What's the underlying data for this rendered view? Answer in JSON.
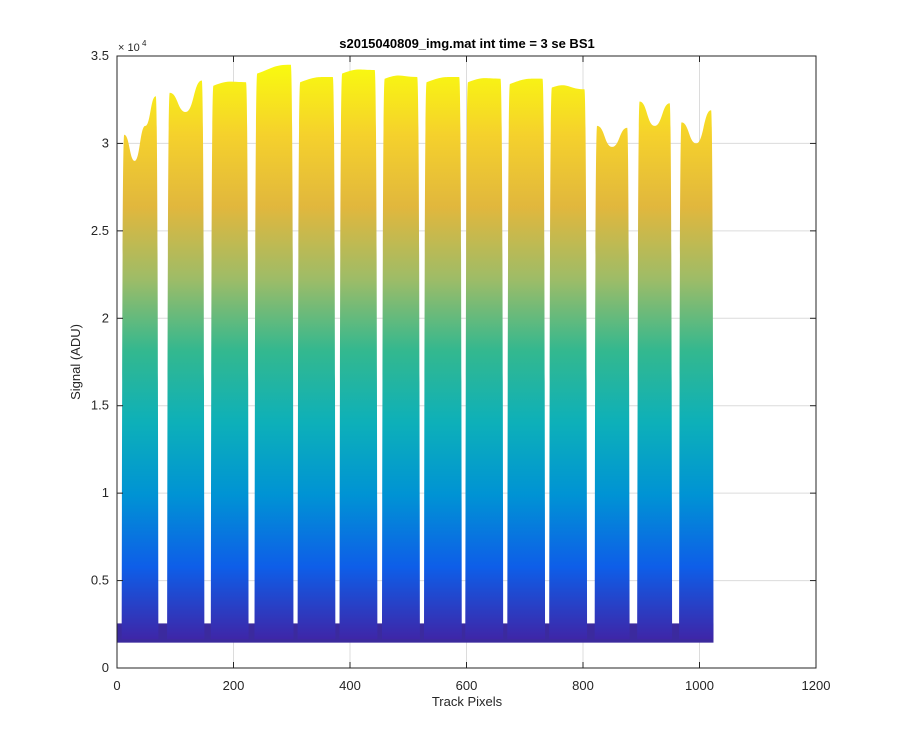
{
  "chart_data": {
    "type": "area",
    "title": "s2015040809_img.mat int time = 3 se   BS1",
    "xlabel": "Track Pixels",
    "ylabel": "Signal (ADU)",
    "xlim": [
      0,
      1200
    ],
    "ylim": [
      0,
      35000
    ],
    "x_ticks": [
      0,
      200,
      400,
      600,
      800,
      1000,
      1200
    ],
    "y_ticks": [
      0,
      5000,
      10000,
      15000,
      20000,
      25000,
      30000,
      35000
    ],
    "y_tick_labels": [
      "0",
      "0.5",
      "1",
      "1.5",
      "2",
      "2.5",
      "3",
      "3.5"
    ],
    "y_exponent": {
      "base": "× 10",
      "power": "4"
    },
    "grid": true,
    "baseline": 1650,
    "x_data_end": 1024,
    "peaks": [
      {
        "x_start": 8,
        "x_end": 71,
        "values": [
          30500,
          29000,
          31000,
          32700
        ]
      },
      {
        "x_start": 86,
        "x_end": 150,
        "values": [
          32900,
          31800,
          33600
        ]
      },
      {
        "x_start": 161,
        "x_end": 226,
        "values": [
          33300,
          33500
        ]
      },
      {
        "x_start": 236,
        "x_end": 303,
        "values": [
          34000,
          34500
        ]
      },
      {
        "x_start": 310,
        "x_end": 375,
        "values": [
          33500,
          33800
        ]
      },
      {
        "x_start": 382,
        "x_end": 447,
        "values": [
          34000,
          34200
        ]
      },
      {
        "x_start": 455,
        "x_end": 520,
        "values": [
          33700,
          33800
        ]
      },
      {
        "x_start": 527,
        "x_end": 592,
        "values": [
          33500,
          33800
        ]
      },
      {
        "x_start": 598,
        "x_end": 663,
        "values": [
          33500,
          33700
        ]
      },
      {
        "x_start": 670,
        "x_end": 735,
        "values": [
          33400,
          33700
        ]
      },
      {
        "x_start": 742,
        "x_end": 807,
        "values": [
          33200,
          33100
        ]
      },
      {
        "x_start": 820,
        "x_end": 880,
        "values": [
          31000,
          29800,
          30900
        ]
      },
      {
        "x_start": 893,
        "x_end": 953,
        "values": [
          32400,
          31000,
          32300
        ]
      },
      {
        "x_start": 965,
        "x_end": 1024,
        "values": [
          31200,
          30000,
          31900
        ]
      }
    ],
    "colormap": [
      "#3e26a8",
      "#0e5ee8",
      "#0093d4",
      "#0db0b9",
      "#33b88f",
      "#9ebc67",
      "#e1b73d",
      "#f5d12c",
      "#f9fb0e"
    ]
  }
}
